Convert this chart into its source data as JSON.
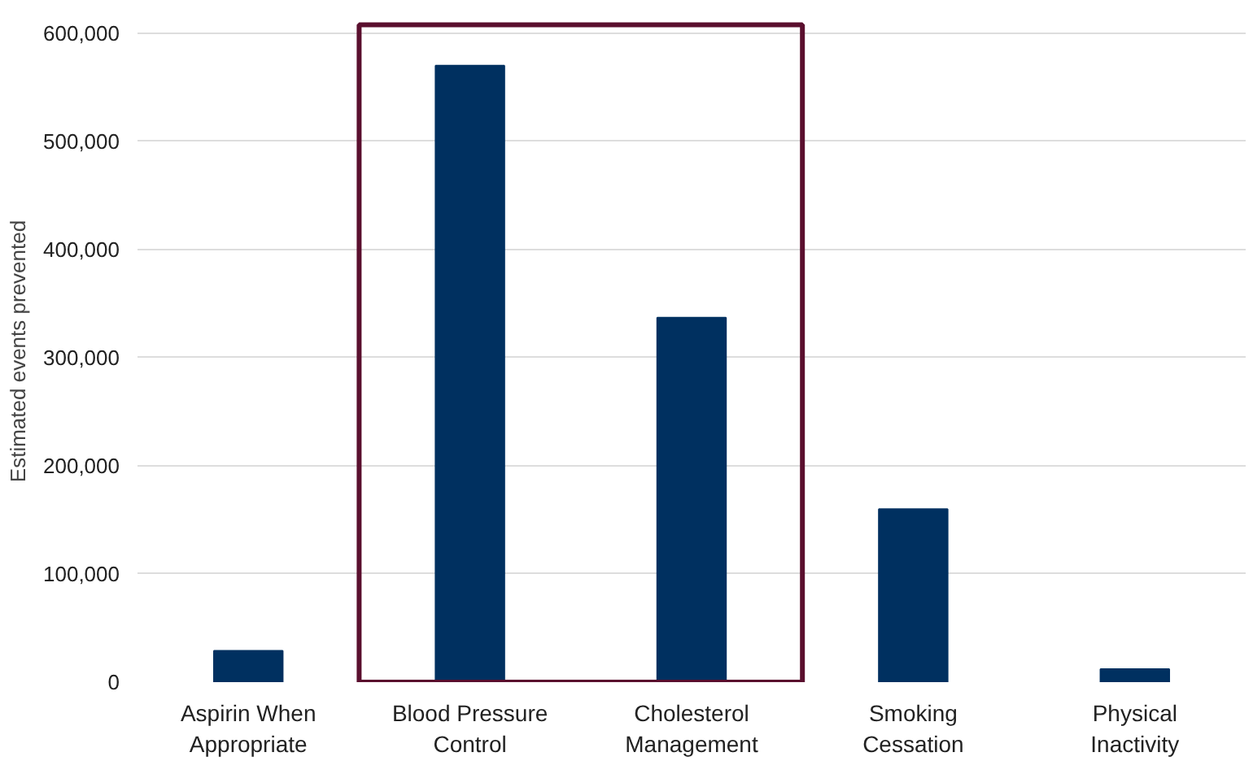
{
  "chart_data": {
    "type": "bar",
    "ylabel": "Estimated events prevented",
    "categories": [
      "Aspirin When Appropriate",
      "Blood Pressure Control",
      "Cholesterol Management",
      "Smoking Cessation",
      "Physical Inactivity"
    ],
    "values": [
      29000,
      570000,
      337000,
      160000,
      12000
    ],
    "color": "#003060",
    "ylim": [
      0,
      600000
    ],
    "yticks": [
      {
        "value": 0,
        "label": "0"
      },
      {
        "value": 100000,
        "label": "100,000"
      },
      {
        "value": 200000,
        "label": "200,000"
      },
      {
        "value": 300000,
        "label": "300,000"
      },
      {
        "value": 400000,
        "label": "400,000"
      },
      {
        "value": 500000,
        "label": "500,000"
      },
      {
        "value": 600000,
        "label": "600,000"
      }
    ],
    "grid": "y"
  }
}
